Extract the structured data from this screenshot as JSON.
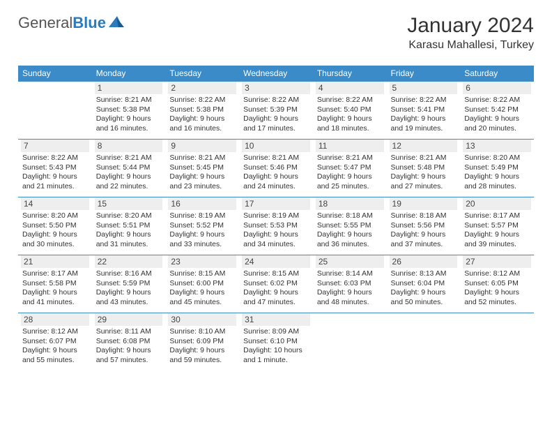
{
  "logo": {
    "text1": "General",
    "text2": "Blue"
  },
  "title": "January 2024",
  "location": "Karasu Mahallesi, Turkey",
  "colors": {
    "header_bg": "#3b8bc9",
    "header_text": "#ffffff",
    "border": "#3b8bc9",
    "daynum_bg": "#eeeeee",
    "logo_blue": "#2b7bbf"
  },
  "weekdays": [
    "Sunday",
    "Monday",
    "Tuesday",
    "Wednesday",
    "Thursday",
    "Friday",
    "Saturday"
  ],
  "weeks": [
    [
      null,
      {
        "n": "1",
        "sr": "8:21 AM",
        "ss": "5:38 PM",
        "dl": "Daylight: 9 hours and 16 minutes."
      },
      {
        "n": "2",
        "sr": "8:22 AM",
        "ss": "5:38 PM",
        "dl": "Daylight: 9 hours and 16 minutes."
      },
      {
        "n": "3",
        "sr": "8:22 AM",
        "ss": "5:39 PM",
        "dl": "Daylight: 9 hours and 17 minutes."
      },
      {
        "n": "4",
        "sr": "8:22 AM",
        "ss": "5:40 PM",
        "dl": "Daylight: 9 hours and 18 minutes."
      },
      {
        "n": "5",
        "sr": "8:22 AM",
        "ss": "5:41 PM",
        "dl": "Daylight: 9 hours and 19 minutes."
      },
      {
        "n": "6",
        "sr": "8:22 AM",
        "ss": "5:42 PM",
        "dl": "Daylight: 9 hours and 20 minutes."
      }
    ],
    [
      {
        "n": "7",
        "sr": "8:22 AM",
        "ss": "5:43 PM",
        "dl": "Daylight: 9 hours and 21 minutes."
      },
      {
        "n": "8",
        "sr": "8:21 AM",
        "ss": "5:44 PM",
        "dl": "Daylight: 9 hours and 22 minutes."
      },
      {
        "n": "9",
        "sr": "8:21 AM",
        "ss": "5:45 PM",
        "dl": "Daylight: 9 hours and 23 minutes."
      },
      {
        "n": "10",
        "sr": "8:21 AM",
        "ss": "5:46 PM",
        "dl": "Daylight: 9 hours and 24 minutes."
      },
      {
        "n": "11",
        "sr": "8:21 AM",
        "ss": "5:47 PM",
        "dl": "Daylight: 9 hours and 25 minutes."
      },
      {
        "n": "12",
        "sr": "8:21 AM",
        "ss": "5:48 PM",
        "dl": "Daylight: 9 hours and 27 minutes."
      },
      {
        "n": "13",
        "sr": "8:20 AM",
        "ss": "5:49 PM",
        "dl": "Daylight: 9 hours and 28 minutes."
      }
    ],
    [
      {
        "n": "14",
        "sr": "8:20 AM",
        "ss": "5:50 PM",
        "dl": "Daylight: 9 hours and 30 minutes."
      },
      {
        "n": "15",
        "sr": "8:20 AM",
        "ss": "5:51 PM",
        "dl": "Daylight: 9 hours and 31 minutes."
      },
      {
        "n": "16",
        "sr": "8:19 AM",
        "ss": "5:52 PM",
        "dl": "Daylight: 9 hours and 33 minutes."
      },
      {
        "n": "17",
        "sr": "8:19 AM",
        "ss": "5:53 PM",
        "dl": "Daylight: 9 hours and 34 minutes."
      },
      {
        "n": "18",
        "sr": "8:18 AM",
        "ss": "5:55 PM",
        "dl": "Daylight: 9 hours and 36 minutes."
      },
      {
        "n": "19",
        "sr": "8:18 AM",
        "ss": "5:56 PM",
        "dl": "Daylight: 9 hours and 37 minutes."
      },
      {
        "n": "20",
        "sr": "8:17 AM",
        "ss": "5:57 PM",
        "dl": "Daylight: 9 hours and 39 minutes."
      }
    ],
    [
      {
        "n": "21",
        "sr": "8:17 AM",
        "ss": "5:58 PM",
        "dl": "Daylight: 9 hours and 41 minutes."
      },
      {
        "n": "22",
        "sr": "8:16 AM",
        "ss": "5:59 PM",
        "dl": "Daylight: 9 hours and 43 minutes."
      },
      {
        "n": "23",
        "sr": "8:15 AM",
        "ss": "6:00 PM",
        "dl": "Daylight: 9 hours and 45 minutes."
      },
      {
        "n": "24",
        "sr": "8:15 AM",
        "ss": "6:02 PM",
        "dl": "Daylight: 9 hours and 47 minutes."
      },
      {
        "n": "25",
        "sr": "8:14 AM",
        "ss": "6:03 PM",
        "dl": "Daylight: 9 hours and 48 minutes."
      },
      {
        "n": "26",
        "sr": "8:13 AM",
        "ss": "6:04 PM",
        "dl": "Daylight: 9 hours and 50 minutes."
      },
      {
        "n": "27",
        "sr": "8:12 AM",
        "ss": "6:05 PM",
        "dl": "Daylight: 9 hours and 52 minutes."
      }
    ],
    [
      {
        "n": "28",
        "sr": "8:12 AM",
        "ss": "6:07 PM",
        "dl": "Daylight: 9 hours and 55 minutes."
      },
      {
        "n": "29",
        "sr": "8:11 AM",
        "ss": "6:08 PM",
        "dl": "Daylight: 9 hours and 57 minutes."
      },
      {
        "n": "30",
        "sr": "8:10 AM",
        "ss": "6:09 PM",
        "dl": "Daylight: 9 hours and 59 minutes."
      },
      {
        "n": "31",
        "sr": "8:09 AM",
        "ss": "6:10 PM",
        "dl": "Daylight: 10 hours and 1 minute."
      },
      null,
      null,
      null
    ]
  ]
}
